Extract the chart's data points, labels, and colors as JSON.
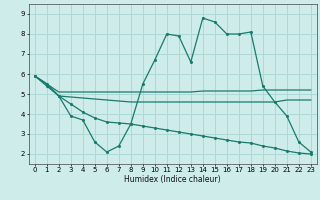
{
  "background_color": "#ceecea",
  "grid_color": "#aed8d5",
  "line_color": "#1a7a6e",
  "xlabel": "Humidex (Indice chaleur)",
  "xlim": [
    -0.5,
    23.5
  ],
  "ylim": [
    1.5,
    9.5
  ],
  "yticks": [
    2,
    3,
    4,
    5,
    6,
    7,
    8,
    9
  ],
  "xticks": [
    0,
    1,
    2,
    3,
    4,
    5,
    6,
    7,
    8,
    9,
    10,
    11,
    12,
    13,
    14,
    15,
    16,
    17,
    18,
    19,
    20,
    21,
    22,
    23
  ],
  "line1_x": [
    0,
    1,
    2,
    3,
    4,
    5,
    6,
    7,
    8,
    9,
    10,
    11,
    12,
    13,
    14,
    15,
    16,
    17,
    18,
    19,
    20,
    21,
    22,
    23
  ],
  "line1_y": [
    5.9,
    5.5,
    4.9,
    3.9,
    3.7,
    2.6,
    2.1,
    2.4,
    3.5,
    5.5,
    6.7,
    8.0,
    7.9,
    6.6,
    8.8,
    8.6,
    8.0,
    8.0,
    8.1,
    5.4,
    4.6,
    3.9,
    2.6,
    2.1
  ],
  "line2_x": [
    0,
    1,
    2,
    3,
    4,
    5,
    6,
    7,
    8,
    9,
    10,
    11,
    12,
    13,
    14,
    15,
    16,
    17,
    18,
    19,
    20,
    21,
    22,
    23
  ],
  "line2_y": [
    5.9,
    5.5,
    5.1,
    5.1,
    5.1,
    5.1,
    5.1,
    5.1,
    5.1,
    5.1,
    5.1,
    5.1,
    5.1,
    5.1,
    5.15,
    5.15,
    5.15,
    5.15,
    5.15,
    5.2,
    5.2,
    5.2,
    5.2,
    5.2
  ],
  "line3_x": [
    0,
    1,
    2,
    3,
    4,
    5,
    6,
    7,
    8,
    9,
    10,
    11,
    12,
    13,
    14,
    15,
    16,
    17,
    18,
    19,
    20,
    21,
    22,
    23
  ],
  "line3_y": [
    5.9,
    5.5,
    4.9,
    4.85,
    4.8,
    4.75,
    4.7,
    4.65,
    4.6,
    4.6,
    4.6,
    4.6,
    4.6,
    4.6,
    4.6,
    4.6,
    4.6,
    4.6,
    4.6,
    4.6,
    4.6,
    4.7,
    4.7,
    4.7
  ],
  "line4_x": [
    0,
    1,
    2,
    3,
    4,
    5,
    6,
    7,
    8,
    9,
    10,
    11,
    12,
    13,
    14,
    15,
    16,
    17,
    18,
    19,
    20,
    21,
    22,
    23
  ],
  "line4_y": [
    5.9,
    5.4,
    4.9,
    4.5,
    4.1,
    3.8,
    3.6,
    3.55,
    3.5,
    3.4,
    3.3,
    3.2,
    3.1,
    3.0,
    2.9,
    2.8,
    2.7,
    2.6,
    2.55,
    2.4,
    2.3,
    2.15,
    2.05,
    2.0
  ]
}
